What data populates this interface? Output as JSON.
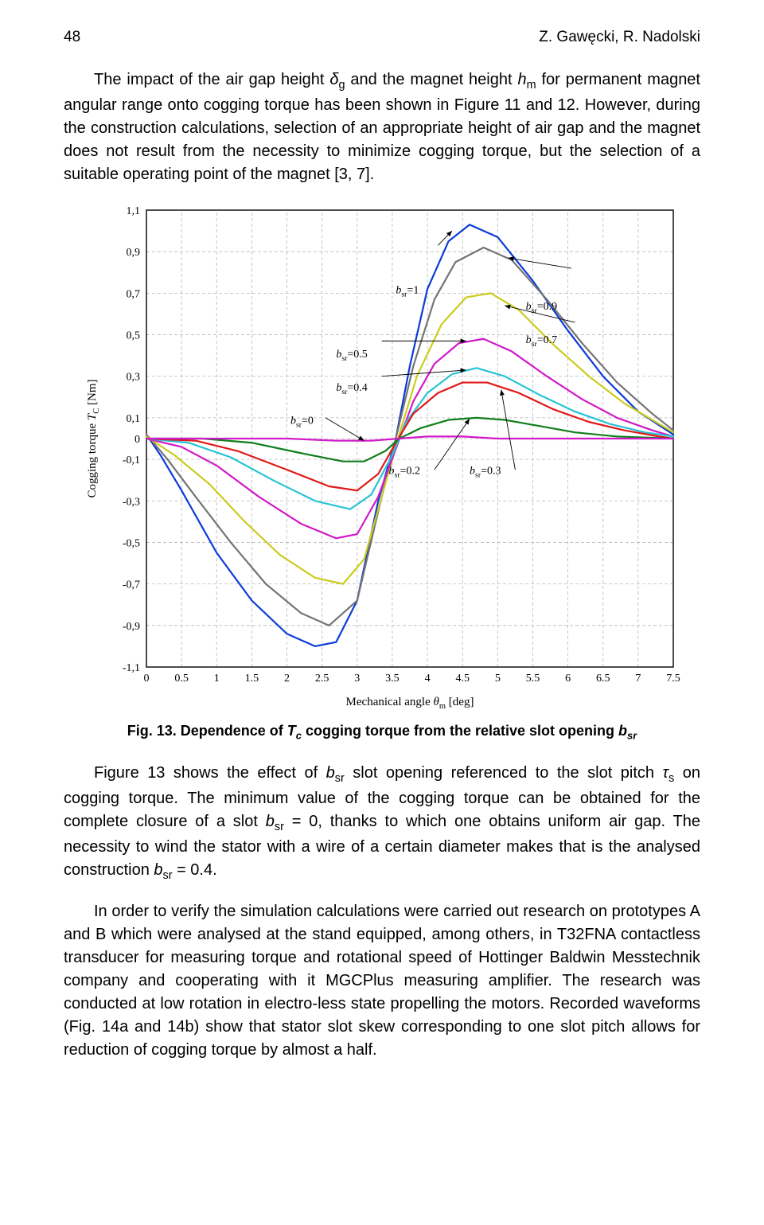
{
  "header": {
    "page_number": "48",
    "authors": "Z. Gawęcki, R. Nadolski"
  },
  "paragraphs": {
    "p1_a": "The impact of the air gap height ",
    "p1_b": " and the magnet height ",
    "p1_c": " for permanent magnet angular range onto cogging torque has been shown in Figure 11 and 12. However, during the construction calculations, selection of an appropriate height of air gap and the magnet does not result from the necessity to minimize cogging torque, but the selection of a suitable operating point of the magnet [3, 7].",
    "p2_a": "Figure 13 shows the effect of ",
    "p2_b": " slot opening referenced to the slot pitch ",
    "p2_c": " on cogging torque. The minimum value of the cogging torque can be obtained for the complete closure of a slot ",
    "p2_d": " = 0, thanks to which one obtains uniform air gap. The necessity to wind the stator with a wire of a certain diameter makes that is the analysed construction ",
    "p2_e": " = 0.4.",
    "p3_a": "In order to verify the simulation calculations were carried out research on prototypes A and B which were analysed at the stand equipped, among others, in T32FNA contactless transducer for measuring torque and rotational speed of Hottinger Baldwin Messtechnik company and cooperating with it MGCPlus measuring amplifier. The research was conducted at low rotation in electro-less state propelling the motors. Recorded waveforms (Fig. 14a and 14b) show that stator slot skew corresponding to one slot pitch allows for reduction of cogging torque by almost a half."
  },
  "symbols": {
    "delta_g": "δ",
    "delta_g_sub": "g",
    "h_m": "h",
    "h_m_sub": "m",
    "b_sr": "b",
    "b_sr_sub": "sr",
    "tau_s": "τ",
    "tau_s_sub": "s",
    "T_c": "T",
    "T_c_sub": "c"
  },
  "caption": {
    "prefix": "Fig. 13. Dependence of ",
    "mid": " cogging torque from the relative slot opening "
  },
  "chart": {
    "type": "line",
    "background_color": "#ffffff",
    "grid_color": "#b8b8b8",
    "axis_color": "#000000",
    "xlabel_a": "Mechanical angle ",
    "xlabel_theta": "θ",
    "xlabel_theta_sub": "m",
    "xlabel_b": " [deg]",
    "ylabel_a": "Cogging torque   ",
    "ylabel_T": "T",
    "ylabel_T_sub": "C",
    "ylabel_b": " [Nm]",
    "label_fontsize": 15,
    "tick_fontsize": 14,
    "annotation_fontsize": 14,
    "xlim": [
      0,
      7.5
    ],
    "ylim": [
      -1.1,
      1.1
    ],
    "xticks": [
      0,
      0.5,
      1,
      1.5,
      2,
      2.5,
      3,
      3.5,
      4,
      4.5,
      5,
      5.5,
      6,
      6.5,
      7,
      7.5
    ],
    "xtick_labels": [
      "0",
      "0.5",
      "1",
      "1.5",
      "2",
      "2.5",
      "3",
      "3.5",
      "4",
      "4.5",
      "5",
      "5.5",
      "6",
      "6.5",
      "7",
      "7.5"
    ],
    "yticks": [
      -1.1,
      -0.9,
      -0.7,
      -0.5,
      -0.3,
      -0.1,
      0,
      0.1,
      0.3,
      0.5,
      0.7,
      0.9,
      1.1
    ],
    "ytick_labels": [
      "-1,1",
      "-0,9",
      "-0,7",
      "-0,5",
      "-0,3",
      "-0,1",
      "0",
      "0,1",
      "0,3",
      "0,5",
      "0,7",
      "0,9",
      "1,1"
    ],
    "line_width": 2.2,
    "series": [
      {
        "name": "b_sr=1",
        "color": "#0b3bd9",
        "label": "b_sr =1",
        "points": [
          [
            0,
            0.02
          ],
          [
            0.2,
            -0.08
          ],
          [
            0.5,
            -0.25
          ],
          [
            1,
            -0.55
          ],
          [
            1.5,
            -0.78
          ],
          [
            2,
            -0.94
          ],
          [
            2.4,
            -1.0
          ],
          [
            2.7,
            -0.98
          ],
          [
            3,
            -0.78
          ],
          [
            3.3,
            -0.3
          ],
          [
            3.55,
            0.0
          ],
          [
            3.75,
            0.35
          ],
          [
            4,
            0.72
          ],
          [
            4.3,
            0.95
          ],
          [
            4.6,
            1.03
          ],
          [
            5,
            0.97
          ],
          [
            5.5,
            0.76
          ],
          [
            6,
            0.52
          ],
          [
            6.5,
            0.3
          ],
          [
            7,
            0.13
          ],
          [
            7.5,
            0.02
          ]
        ]
      },
      {
        "name": "b_sr=0.9",
        "color": "#747474",
        "label": "b_sr=0.9",
        "points": [
          [
            0,
            0.02
          ],
          [
            0.3,
            -0.1
          ],
          [
            0.7,
            -0.28
          ],
          [
            1.2,
            -0.5
          ],
          [
            1.7,
            -0.7
          ],
          [
            2.2,
            -0.84
          ],
          [
            2.6,
            -0.9
          ],
          [
            3,
            -0.78
          ],
          [
            3.3,
            -0.35
          ],
          [
            3.55,
            0.0
          ],
          [
            3.8,
            0.35
          ],
          [
            4.1,
            0.67
          ],
          [
            4.4,
            0.85
          ],
          [
            4.8,
            0.92
          ],
          [
            5.2,
            0.86
          ],
          [
            5.7,
            0.67
          ],
          [
            6.2,
            0.46
          ],
          [
            6.7,
            0.27
          ],
          [
            7.2,
            0.12
          ],
          [
            7.5,
            0.04
          ]
        ]
      },
      {
        "name": "b_sr=0.7",
        "color": "#cacc1e",
        "label": "b_sr=0.7",
        "points": [
          [
            0,
            0.01
          ],
          [
            0.4,
            -0.08
          ],
          [
            0.9,
            -0.22
          ],
          [
            1.4,
            -0.4
          ],
          [
            1.9,
            -0.56
          ],
          [
            2.4,
            -0.67
          ],
          [
            2.8,
            -0.7
          ],
          [
            3.1,
            -0.58
          ],
          [
            3.4,
            -0.22
          ],
          [
            3.6,
            0.02
          ],
          [
            3.85,
            0.3
          ],
          [
            4.2,
            0.55
          ],
          [
            4.55,
            0.68
          ],
          [
            4.9,
            0.7
          ],
          [
            5.3,
            0.62
          ],
          [
            5.8,
            0.45
          ],
          [
            6.3,
            0.3
          ],
          [
            6.8,
            0.17
          ],
          [
            7.3,
            0.07
          ],
          [
            7.5,
            0.03
          ]
        ]
      },
      {
        "name": "b_sr=0.5",
        "color": "#d11ac9",
        "label": "b_sr=0.5",
        "points": [
          [
            0,
            0.0
          ],
          [
            0.5,
            -0.04
          ],
          [
            1,
            -0.13
          ],
          [
            1.6,
            -0.28
          ],
          [
            2.2,
            -0.41
          ],
          [
            2.7,
            -0.48
          ],
          [
            3.0,
            -0.46
          ],
          [
            3.3,
            -0.28
          ],
          [
            3.55,
            -0.05
          ],
          [
            3.8,
            0.18
          ],
          [
            4.1,
            0.36
          ],
          [
            4.45,
            0.46
          ],
          [
            4.8,
            0.48
          ],
          [
            5.2,
            0.42
          ],
          [
            5.7,
            0.3
          ],
          [
            6.2,
            0.19
          ],
          [
            6.7,
            0.1
          ],
          [
            7.2,
            0.04
          ],
          [
            7.5,
            0.01
          ]
        ]
      },
      {
        "name": "b_sr=0.4",
        "color": "#28c3d6",
        "label": "b_sr=0.4",
        "points": [
          [
            0,
            0.0
          ],
          [
            0.6,
            -0.02
          ],
          [
            1.2,
            -0.09
          ],
          [
            1.8,
            -0.2
          ],
          [
            2.4,
            -0.3
          ],
          [
            2.9,
            -0.34
          ],
          [
            3.2,
            -0.27
          ],
          [
            3.5,
            -0.08
          ],
          [
            3.7,
            0.08
          ],
          [
            4.0,
            0.22
          ],
          [
            4.35,
            0.31
          ],
          [
            4.7,
            0.34
          ],
          [
            5.1,
            0.3
          ],
          [
            5.6,
            0.21
          ],
          [
            6.1,
            0.13
          ],
          [
            6.6,
            0.07
          ],
          [
            7.1,
            0.03
          ],
          [
            7.5,
            0.01
          ]
        ]
      },
      {
        "name": "b_sr=0.3",
        "color": "#e11919",
        "label": "b_sr=0.3",
        "points": [
          [
            0,
            0.0
          ],
          [
            0.7,
            -0.01
          ],
          [
            1.3,
            -0.06
          ],
          [
            2,
            -0.15
          ],
          [
            2.6,
            -0.23
          ],
          [
            3.0,
            -0.25
          ],
          [
            3.3,
            -0.17
          ],
          [
            3.55,
            -0.02
          ],
          [
            3.8,
            0.12
          ],
          [
            4.15,
            0.22
          ],
          [
            4.5,
            0.27
          ],
          [
            4.85,
            0.27
          ],
          [
            5.3,
            0.22
          ],
          [
            5.8,
            0.14
          ],
          [
            6.3,
            0.08
          ],
          [
            6.8,
            0.04
          ],
          [
            7.3,
            0.01
          ],
          [
            7.5,
            0.0
          ]
        ]
      },
      {
        "name": "b_sr=0.2",
        "color": "#0f7f1a",
        "label": "b_sr=0.2",
        "points": [
          [
            0,
            0.0
          ],
          [
            0.8,
            0.0
          ],
          [
            1.5,
            -0.02
          ],
          [
            2.2,
            -0.07
          ],
          [
            2.8,
            -0.11
          ],
          [
            3.1,
            -0.11
          ],
          [
            3.4,
            -0.06
          ],
          [
            3.6,
            0.0
          ],
          [
            3.9,
            0.05
          ],
          [
            4.3,
            0.09
          ],
          [
            4.7,
            0.1
          ],
          [
            5.1,
            0.09
          ],
          [
            5.6,
            0.06
          ],
          [
            6.1,
            0.03
          ],
          [
            6.7,
            0.01
          ],
          [
            7.5,
            0.0
          ]
        ]
      },
      {
        "name": "b_sr=0",
        "color": "#d11ac9",
        "label": "b_sr=0",
        "points": [
          [
            0,
            0.0
          ],
          [
            1,
            0.0
          ],
          [
            2,
            0.0
          ],
          [
            2.7,
            -0.01
          ],
          [
            3.2,
            -0.01
          ],
          [
            3.6,
            0.0
          ],
          [
            4,
            0.01
          ],
          [
            4.5,
            0.01
          ],
          [
            5,
            0.0
          ],
          [
            6,
            0.0
          ],
          [
            7.5,
            0.0
          ]
        ]
      }
    ],
    "annotations": [
      {
        "text": "=1",
        "bx": 4.15,
        "by": 0.93,
        "tx": 3.55,
        "ty": 0.7,
        "arrow_to": [
          4.35,
          1.0
        ]
      },
      {
        "text": "=0.9",
        "bx": 6.05,
        "by": 0.82,
        "tx": 5.4,
        "ty": 0.62,
        "arrow_to": [
          5.15,
          0.87
        ]
      },
      {
        "text": "=0.7",
        "bx": 6.1,
        "by": 0.56,
        "tx": 5.4,
        "ty": 0.46,
        "arrow_to": [
          5.1,
          0.64
        ]
      },
      {
        "text": "=0.5",
        "bx": 3.35,
        "by": 0.47,
        "tx": 2.7,
        "ty": 0.39,
        "arrow_to": [
          4.55,
          0.47
        ]
      },
      {
        "text": "=0.4",
        "bx": 3.35,
        "by": 0.3,
        "tx": 2.7,
        "ty": 0.23,
        "arrow_to": [
          4.55,
          0.33
        ]
      },
      {
        "text": "=0",
        "bx": 2.55,
        "by": 0.1,
        "tx": 2.05,
        "ty": 0.07,
        "arrow_to": [
          3.1,
          -0.01
        ]
      },
      {
        "text": "=0.2",
        "bx": 4.1,
        "by": -0.15,
        "tx": 3.45,
        "ty": -0.17,
        "arrow_to": [
          4.6,
          0.095
        ]
      },
      {
        "text": "=0.3",
        "bx": 5.25,
        "by": -0.15,
        "tx": 4.6,
        "ty": -0.17,
        "arrow_to": [
          5.05,
          0.235
        ]
      }
    ]
  }
}
